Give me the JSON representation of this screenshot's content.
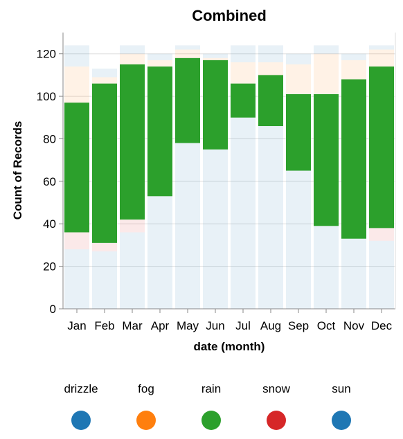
{
  "chart_data": {
    "type": "bar",
    "stacked": true,
    "title": "Combined",
    "xlabel": "date (month)",
    "ylabel": "Count of Records",
    "ylim": [
      0,
      130
    ],
    "yticks": [
      0,
      20,
      40,
      60,
      80,
      100,
      120
    ],
    "grid": true,
    "legend_position": "bottom",
    "categories": [
      "Jan",
      "Feb",
      "Mar",
      "Apr",
      "May",
      "Jun",
      "Jul",
      "Aug",
      "Sep",
      "Oct",
      "Nov",
      "Dec"
    ],
    "stack_order": [
      "sun",
      "snow",
      "rain",
      "fog",
      "drizzle"
    ],
    "series": [
      {
        "name": "sun",
        "color": "#1f77b4",
        "faded": true,
        "values": [
          28,
          27,
          36,
          53,
          78,
          75,
          90,
          86,
          65,
          39,
          33,
          32
        ]
      },
      {
        "name": "snow",
        "color": "#d62728",
        "faded": true,
        "values": [
          8,
          4,
          6,
          0,
          0,
          0,
          0,
          0,
          0,
          0,
          0,
          6
        ]
      },
      {
        "name": "rain",
        "color": "#2ca02c",
        "faded": false,
        "values": [
          61,
          75,
          73,
          61,
          40,
          42,
          16,
          24,
          36,
          62,
          75,
          76
        ]
      },
      {
        "name": "fog",
        "color": "#ff7f0e",
        "faded": true,
        "values": [
          17,
          3,
          5,
          3,
          4,
          1,
          10,
          6,
          14,
          19,
          9,
          8
        ]
      },
      {
        "name": "drizzle",
        "color": "#1f77b4",
        "faded": true,
        "values": [
          10,
          4,
          4,
          3,
          2,
          2,
          8,
          8,
          5,
          4,
          3,
          2
        ]
      }
    ]
  },
  "legend": {
    "items": [
      {
        "label": "drizzle",
        "color": "#1f77b4"
      },
      {
        "label": "fog",
        "color": "#ff7f0e"
      },
      {
        "label": "rain",
        "color": "#2ca02c"
      },
      {
        "label": "snow",
        "color": "#d62728"
      },
      {
        "label": "sun",
        "color": "#1f77b4"
      }
    ]
  }
}
